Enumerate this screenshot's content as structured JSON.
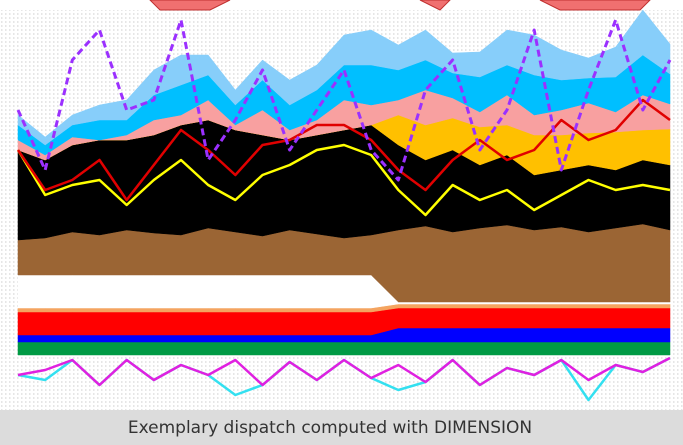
{
  "chart_data": [
    {
      "type": "area",
      "stacked": true,
      "x": [
        0,
        1,
        2,
        3,
        4,
        5,
        6,
        7,
        8,
        9,
        10,
        11,
        12,
        13,
        14,
        15,
        16,
        17,
        18,
        19,
        20,
        21,
        22,
        23,
        24
      ],
      "xlim": [
        0,
        24
      ],
      "ylim": [
        0,
        345
      ],
      "series": [
        {
          "color": "#009a44",
          "values": [
            13,
            13,
            13,
            13,
            13,
            13,
            13,
            13,
            13,
            13,
            13,
            13,
            13,
            13,
            13,
            13,
            13,
            13,
            13,
            13,
            13,
            13,
            13,
            13,
            13
          ]
        },
        {
          "color": "#0000ff",
          "values": [
            7,
            7,
            7,
            7,
            7,
            7,
            7,
            7,
            7,
            7,
            7,
            7,
            7,
            7,
            14,
            14,
            14,
            14,
            14,
            14,
            14,
            14,
            14,
            14,
            14
          ]
        },
        {
          "color": "#ff0000",
          "values": [
            23,
            23,
            23,
            23,
            23,
            23,
            23,
            23,
            23,
            23,
            23,
            23,
            23,
            23,
            20,
            20,
            20,
            20,
            20,
            20,
            20,
            20,
            20,
            20,
            20
          ]
        },
        {
          "color": "#f4a460",
          "values": [
            4,
            4,
            4,
            4,
            4,
            4,
            4,
            4,
            4,
            4,
            4,
            4,
            4,
            4,
            4,
            4,
            4,
            4,
            4,
            4,
            4,
            4,
            4,
            4,
            4
          ]
        },
        {
          "color": "#ffffff",
          "values": [
            33,
            33,
            33,
            33,
            33,
            33,
            33,
            33,
            33,
            33,
            33,
            33,
            33,
            33,
            2,
            2,
            2,
            2,
            2,
            2,
            2,
            2,
            2,
            2,
            2
          ]
        },
        {
          "color": "#9b6534",
          "values": [
            35,
            37,
            43,
            40,
            45,
            42,
            40,
            47,
            43,
            39,
            45,
            41,
            37,
            40,
            72,
            76,
            70,
            74,
            77,
            72,
            75,
            70,
            74,
            78,
            72
          ]
        },
        {
          "color": "#000000",
          "values": [
            90,
            78,
            87,
            95,
            90,
            98,
            110,
            108,
            102,
            101,
            90,
            99,
            108,
            110,
            85,
            66,
            82,
            63,
            70,
            55,
            57,
            67,
            58,
            64,
            65
          ]
        },
        {
          "color": "#ffc000",
          "values": [
            0,
            0,
            0,
            0,
            0,
            0,
            0,
            0,
            0,
            0,
            0,
            0,
            0,
            0,
            30,
            35,
            32,
            38,
            30,
            40,
            35,
            32,
            38,
            30,
            36
          ]
        },
        {
          "color": "#f8a0a0",
          "values": [
            10,
            5,
            8,
            0,
            5,
            15,
            10,
            20,
            5,
            25,
            10,
            15,
            30,
            20,
            15,
            35,
            20,
            15,
            30,
            20,
            25,
            30,
            20,
            35,
            25
          ]
        },
        {
          "color": "#00bfff",
          "values": [
            15,
            10,
            12,
            20,
            15,
            25,
            30,
            25,
            20,
            30,
            25,
            30,
            35,
            40,
            30,
            30,
            25,
            35,
            30,
            40,
            30,
            25,
            35,
            40,
            30
          ]
        },
        {
          "color": "#87cefa",
          "values": [
            10,
            8,
            10,
            15,
            20,
            25,
            30,
            20,
            15,
            20,
            25,
            25,
            30,
            35,
            25,
            30,
            20,
            25,
            35,
            40,
            30,
            20,
            30,
            45,
            30
          ]
        },
        {
          "type": "line",
          "color": "#ffff00",
          "values": [
            205,
            160,
            170,
            175,
            150,
            175,
            195,
            170,
            155,
            180,
            190,
            205,
            210,
            200,
            165,
            140,
            170,
            155,
            165,
            145,
            160,
            175,
            165,
            170,
            165
          ]
        },
        {
          "type": "line",
          "color": "#e00000",
          "values": [
            205,
            165,
            175,
            195,
            155,
            190,
            225,
            205,
            180,
            210,
            215,
            230,
            230,
            215,
            185,
            165,
            195,
            215,
            195,
            205,
            235,
            215,
            225,
            255,
            235
          ]
        },
        {
          "type": "line",
          "color": "#9b30ff",
          "dashed": true,
          "values": [
            245,
            185,
            295,
            325,
            245,
            255,
            335,
            195,
            235,
            285,
            205,
            245,
            285,
            205,
            175,
            265,
            295,
            205,
            245,
            325,
            185,
            265,
            335,
            245,
            295
          ]
        }
      ]
    },
    {
      "type": "line",
      "x": [
        0,
        1,
        2,
        3,
        4,
        5,
        6,
        7,
        8,
        9,
        10,
        11,
        12,
        13,
        14,
        15,
        16,
        17,
        18,
        19,
        20,
        21,
        22,
        23,
        24
      ],
      "xlim": [
        0,
        24
      ],
      "ylim": [
        0,
        50
      ],
      "series": [
        {
          "color": "#33e0f0",
          "values": [
            30,
            25,
            45,
            20,
            45,
            25,
            40,
            30,
            10,
            20,
            43,
            25,
            45,
            27,
            15,
            23,
            45,
            20,
            37,
            30,
            45,
            5,
            40,
            33,
            47
          ]
        },
        {
          "color": "#e020e0",
          "values": [
            30,
            35,
            45,
            20,
            45,
            25,
            40,
            30,
            45,
            20,
            43,
            25,
            45,
            27,
            40,
            23,
            45,
            20,
            37,
            30,
            45,
            25,
            40,
            33,
            47
          ]
        }
      ]
    }
  ],
  "caption": "Exemplary dispatch computed with DIMENSION"
}
